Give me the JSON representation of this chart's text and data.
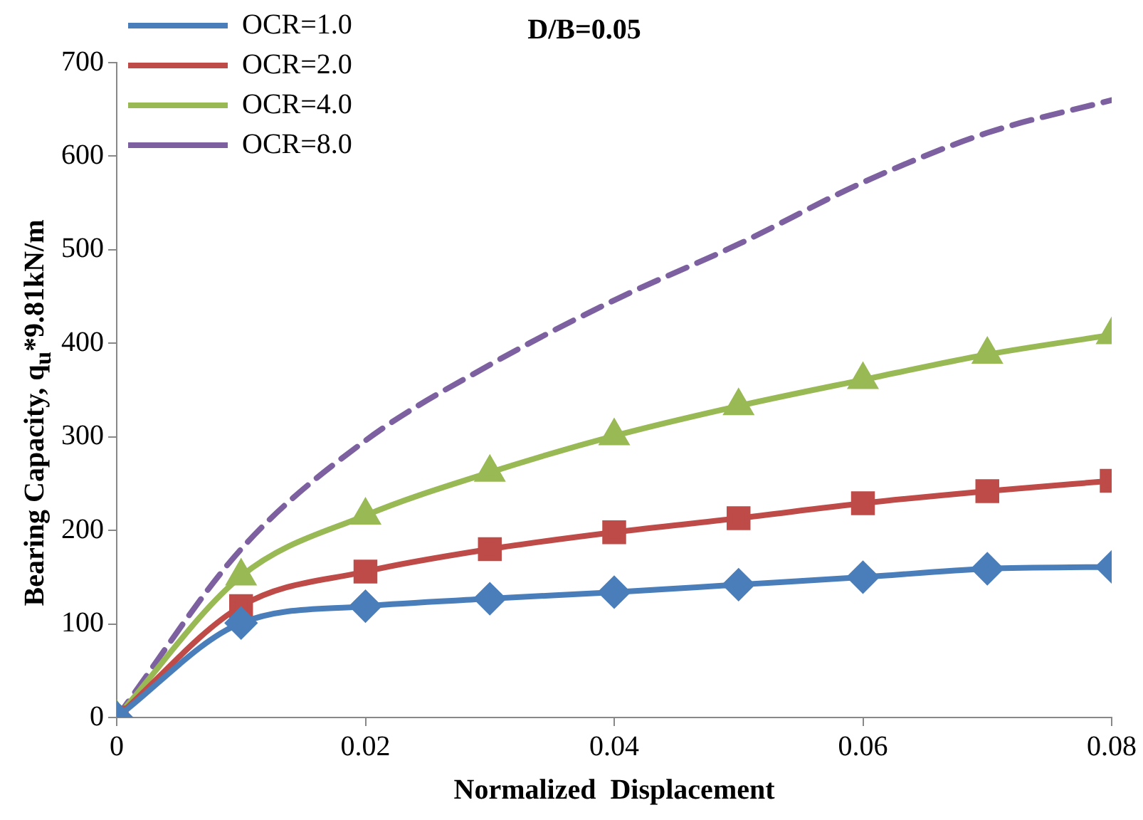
{
  "chart_data": {
    "type": "line",
    "title": "D/B=0.05",
    "xlabel": "Normalized  Displacement",
    "ylabel": "Bearing Capacity, q$_{u}$*9.81kN/m",
    "x": [
      0,
      0.01,
      0.02,
      0.03,
      0.04,
      0.05,
      0.06,
      0.07,
      0.08
    ],
    "series": [
      {
        "name": "OCR=1.0",
        "color": "#4a7ebb",
        "marker": "diamond",
        "line_style": "solid",
        "values": [
          0,
          101,
          119,
          127,
          134,
          142,
          150,
          159,
          161
        ]
      },
      {
        "name": "OCR=2.0",
        "color": "#be4b48",
        "marker": "square",
        "line_style": "solid",
        "values": [
          0,
          119,
          156,
          180,
          198,
          213,
          229,
          242,
          253
        ]
      },
      {
        "name": "OCR=4.0",
        "color": "#98b954",
        "marker": "triangle",
        "line_style": "solid",
        "values": [
          0,
          151,
          216,
          262,
          301,
          333,
          361,
          388,
          409
        ]
      },
      {
        "name": "OCR=8.0",
        "color": "#7d60a0",
        "marker": "none",
        "line_style": "dashed",
        "values": [
          0,
          180,
          296,
          377,
          446,
          506,
          572,
          625,
          660
        ]
      }
    ],
    "xlim": [
      0,
      0.08
    ],
    "xticks": [
      0,
      0.02,
      0.04,
      0.06,
      0.08
    ],
    "ylim": [
      0,
      700
    ],
    "yticks": [
      0,
      100,
      200,
      300,
      400,
      500,
      600,
      700
    ],
    "grid": false,
    "legend": "top left"
  }
}
